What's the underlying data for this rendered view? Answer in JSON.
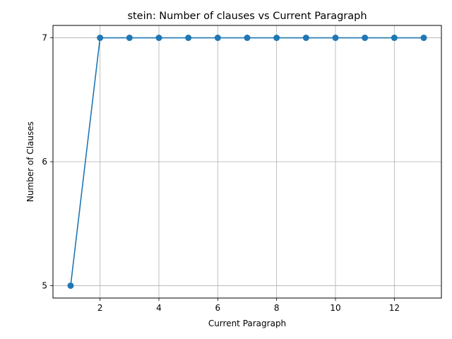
{
  "chart_data": {
    "type": "line",
    "title": "stein: Number of clauses vs Current Paragraph",
    "xlabel": "Current Paragraph",
    "ylabel": "Number of Clauses",
    "x": [
      1,
      2,
      3,
      4,
      5,
      6,
      7,
      8,
      9,
      10,
      11,
      12,
      13
    ],
    "series": [
      {
        "values": [
          5,
          7,
          7,
          7,
          7,
          7,
          7,
          7,
          7,
          7,
          7,
          7,
          7
        ],
        "color": "#1f77b4",
        "marker": "circle"
      }
    ],
    "xlim": [
      0.4,
      13.6
    ],
    "ylim": [
      4.9,
      7.1
    ],
    "xticks": [
      2,
      4,
      6,
      8,
      10,
      12
    ],
    "yticks": [
      5,
      6,
      7
    ],
    "grid": true,
    "legend": "none"
  }
}
